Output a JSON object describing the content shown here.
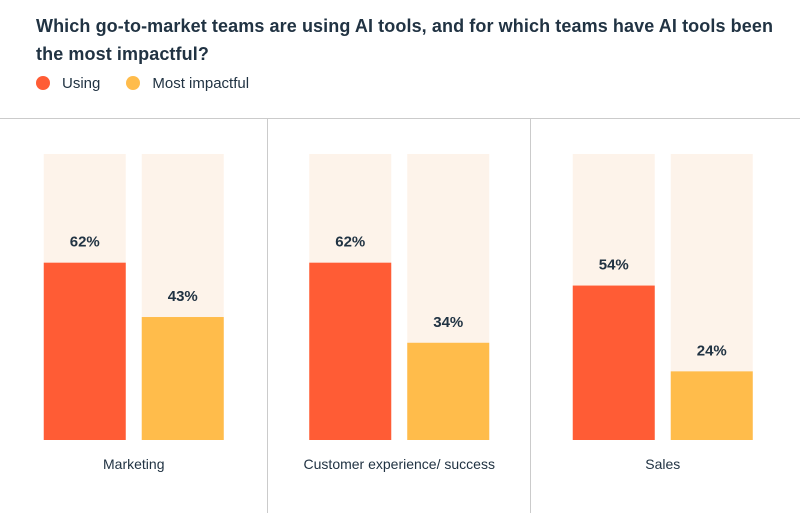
{
  "chart_data": {
    "type": "bar",
    "title": "Which go-to-market teams are using AI tools, and for which teams have AI tools been the most impactful?",
    "categories": [
      "Marketing",
      "Customer experience/ success",
      "Sales"
    ],
    "series": [
      {
        "name": "Using",
        "values": [
          62,
          62,
          54
        ],
        "labels": [
          "62%",
          "62%",
          "54%"
        ],
        "color": "#ff5c35"
      },
      {
        "name": "Most impactful",
        "values": [
          43,
          34,
          24
        ],
        "labels": [
          "43%",
          "34%",
          "24%"
        ],
        "color": "#ffbc4b"
      }
    ],
    "track_color": "#fdf3ea",
    "divider_color": "#cbcbcb",
    "ylim": [
      0,
      100
    ],
    "legend_position": "top-left",
    "grid": false
  }
}
